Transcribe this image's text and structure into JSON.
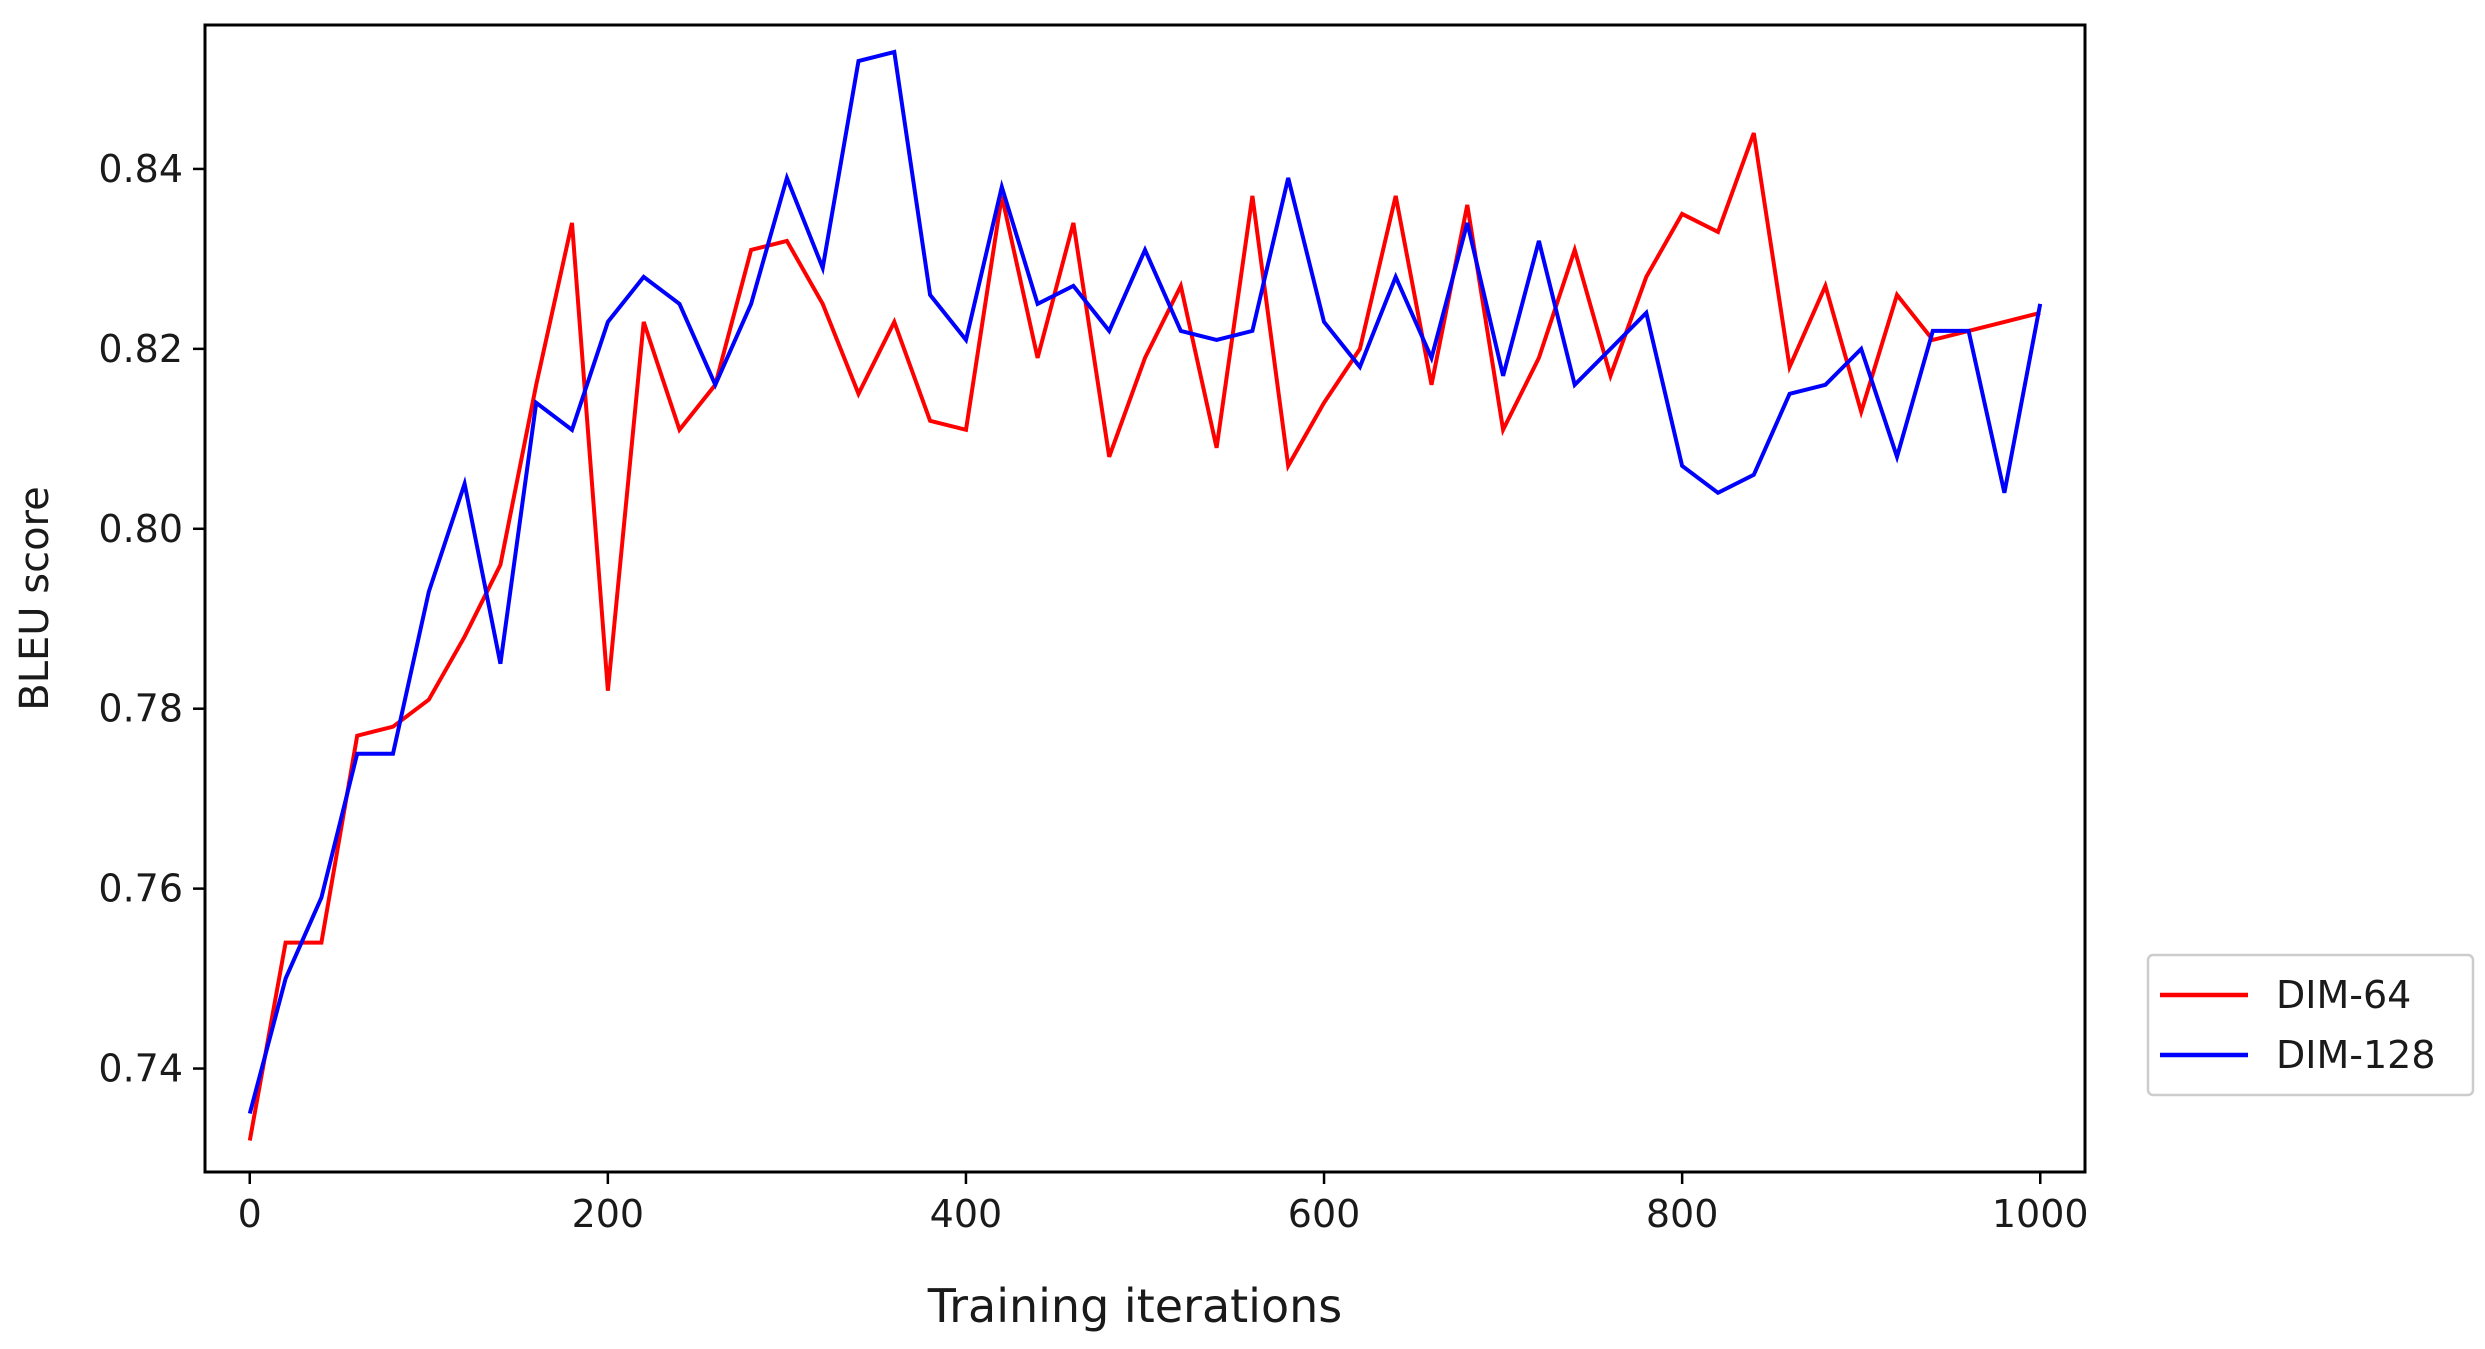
{
  "chart_data": {
    "type": "line",
    "xlabel": "Training iterations",
    "ylabel": "BLEU score",
    "xlim": [
      -25,
      1025
    ],
    "ylim": [
      0.7285,
      0.856
    ],
    "xticks": [
      0,
      200,
      400,
      600,
      800,
      1000
    ],
    "yticks": [
      0.74,
      0.76,
      0.78,
      0.8,
      0.82,
      0.84
    ],
    "xtick_labels": [
      "0",
      "200",
      "400",
      "600",
      "800",
      "1000"
    ],
    "ytick_labels": [
      "0.74",
      "0.76",
      "0.78",
      "0.80",
      "0.82",
      "0.84"
    ],
    "legend_position": "outside-right-bottom",
    "grid": false,
    "series": [
      {
        "name": "DIM-64",
        "color": "#ff0000",
        "x": [
          0,
          20,
          40,
          60,
          80,
          100,
          120,
          140,
          160,
          180,
          200,
          220,
          240,
          260,
          280,
          300,
          320,
          340,
          360,
          380,
          400,
          420,
          440,
          460,
          480,
          500,
          520,
          540,
          560,
          580,
          600,
          620,
          640,
          660,
          680,
          700,
          720,
          740,
          760,
          780,
          800,
          820,
          840,
          860,
          880,
          900,
          920,
          940,
          960,
          980,
          1000
        ],
        "values": [
          0.732,
          0.754,
          0.754,
          0.777,
          0.778,
          0.781,
          0.788,
          0.796,
          0.816,
          0.834,
          0.782,
          0.823,
          0.811,
          0.816,
          0.831,
          0.832,
          0.825,
          0.815,
          0.823,
          0.812,
          0.811,
          0.837,
          0.819,
          0.834,
          0.808,
          0.819,
          0.827,
          0.809,
          0.837,
          0.807,
          0.814,
          0.82,
          0.837,
          0.816,
          0.836,
          0.811,
          0.819,
          0.831,
          0.817,
          0.828,
          0.835,
          0.833,
          0.844,
          0.818,
          0.827,
          0.813,
          0.826,
          0.821,
          0.822,
          0.823,
          0.824
        ]
      },
      {
        "name": "DIM-128",
        "color": "#0000ff",
        "x": [
          0,
          20,
          40,
          60,
          80,
          100,
          120,
          140,
          160,
          180,
          200,
          220,
          240,
          260,
          280,
          300,
          320,
          340,
          360,
          380,
          400,
          420,
          440,
          460,
          480,
          500,
          520,
          540,
          560,
          580,
          600,
          620,
          640,
          660,
          680,
          700,
          720,
          740,
          760,
          780,
          800,
          820,
          840,
          860,
          880,
          900,
          920,
          940,
          960,
          980,
          1000
        ],
        "values": [
          0.735,
          0.75,
          0.759,
          0.775,
          0.775,
          0.793,
          0.805,
          0.785,
          0.814,
          0.811,
          0.823,
          0.828,
          0.825,
          0.816,
          0.825,
          0.839,
          0.829,
          0.852,
          0.853,
          0.826,
          0.821,
          0.838,
          0.825,
          0.827,
          0.822,
          0.831,
          0.822,
          0.821,
          0.822,
          0.839,
          0.823,
          0.818,
          0.828,
          0.819,
          0.834,
          0.817,
          0.832,
          0.816,
          0.82,
          0.824,
          0.807,
          0.804,
          0.806,
          0.815,
          0.816,
          0.82,
          0.808,
          0.822,
          0.822,
          0.804,
          0.825
        ]
      }
    ]
  }
}
